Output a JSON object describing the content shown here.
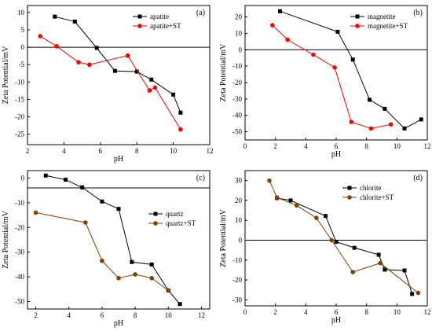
{
  "chart_data": [
    {
      "type": "line",
      "panel_label": "(a)",
      "xlabel": "pH",
      "ylabel": "Zeta Potential/mV",
      "xlim": [
        2,
        12
      ],
      "ylim": [
        -28,
        12
      ],
      "xticks": [
        2,
        4,
        6,
        8,
        10,
        12
      ],
      "yticks": [
        10,
        5,
        0,
        -5,
        -10,
        -15,
        -20,
        -25
      ],
      "reference_line_y": 0,
      "grid": false,
      "legend_position": "top-right",
      "series": [
        {
          "name": "apatite",
          "color": "#000000",
          "marker": "square",
          "x": [
            3.5,
            4.6,
            5.8,
            6.8,
            8.0,
            8.8,
            10.0,
            10.4
          ],
          "y": [
            8.8,
            7.4,
            -0.2,
            -6.8,
            -7.0,
            -9.3,
            -13.6,
            -18.8
          ]
        },
        {
          "name": "apatite+ST",
          "color": "#ff0000",
          "marker": "circle",
          "x": [
            2.7,
            3.6,
            4.8,
            5.4,
            7.5,
            8.7,
            9.0,
            10.4
          ],
          "y": [
            3.2,
            0.3,
            -4.3,
            -5.0,
            -2.4,
            -12.4,
            -11.6,
            -23.6
          ]
        }
      ]
    },
    {
      "type": "line",
      "panel_label": "(b)",
      "xlabel": "pH",
      "ylabel": "Zeta Potential/mV",
      "xlim": [
        0,
        12
      ],
      "ylim": [
        -55,
        27
      ],
      "xticks": [
        0,
        2,
        4,
        6,
        8,
        10,
        12
      ],
      "yticks": [
        20,
        10,
        0,
        -10,
        -20,
        -30,
        -40,
        -50
      ],
      "reference_line_y": 0,
      "grid": false,
      "legend_position": "top-right",
      "series": [
        {
          "name": "magnetite",
          "color": "#000000",
          "marker": "square",
          "x": [
            2.3,
            6.1,
            7.1,
            8.2,
            9.2,
            10.5,
            11.6
          ],
          "y": [
            23.5,
            11.0,
            -6.0,
            -30.5,
            -36.0,
            -48.0,
            -42.5
          ]
        },
        {
          "name": "magnetite+ST",
          "color": "#ff0000",
          "marker": "circle",
          "x": [
            1.8,
            2.8,
            4.5,
            5.9,
            7.0,
            8.3,
            9.6
          ],
          "y": [
            15.0,
            6.2,
            -3.0,
            -10.8,
            -44.0,
            -48.0,
            -45.5
          ]
        }
      ]
    },
    {
      "type": "line",
      "panel_label": "(c)",
      "xlabel": "pH",
      "ylabel": "Zeta Potential/mV",
      "xlim": [
        1.5,
        12.5
      ],
      "ylim": [
        -53,
        3
      ],
      "xticks": [
        2,
        4,
        6,
        8,
        10,
        12
      ],
      "yticks": [
        0,
        -10,
        -20,
        -30,
        -40,
        -50
      ],
      "reference_line_y": -4,
      "grid": false,
      "legend_position": "center-right",
      "series": [
        {
          "name": "quartz",
          "color": "#000000",
          "marker": "square",
          "x": [
            2.6,
            3.8,
            4.8,
            6.0,
            7.0,
            7.8,
            9.0,
            10.0,
            10.7
          ],
          "y": [
            1.0,
            -0.7,
            -3.8,
            -9.5,
            -12.5,
            -34.0,
            -35.0,
            -45.5,
            -51.0
          ]
        },
        {
          "name": "quartz+ST",
          "color": "#804000",
          "marker": "circle",
          "x": [
            2.0,
            5.0,
            6.0,
            7.0,
            8.0,
            9.0,
            10.0
          ],
          "y": [
            -14.0,
            -18.0,
            -33.5,
            -40.5,
            -39.0,
            -40.5,
            -45.5
          ]
        }
      ]
    },
    {
      "type": "line",
      "panel_label": "(d)",
      "xlabel": "pH",
      "ylabel": "Zeta Potential/mV",
      "xlim": [
        0,
        12
      ],
      "ylim": [
        -33,
        35
      ],
      "xticks": [
        0,
        2,
        4,
        6,
        8,
        10,
        12
      ],
      "yticks": [
        30,
        20,
        10,
        0,
        -10,
        -20,
        -30
      ],
      "reference_line_y": 0,
      "grid": false,
      "legend_position": "top-right",
      "series": [
        {
          "name": "chlorite",
          "color": "#000000",
          "marker": "square",
          "x": [
            2.1,
            3.0,
            5.3,
            6.0,
            7.2,
            8.8,
            9.2,
            10.5,
            11.0
          ],
          "y": [
            21.2,
            20.0,
            12.2,
            -0.8,
            -3.8,
            -7.3,
            -14.8,
            -15.2,
            -27.0
          ]
        },
        {
          "name": "chlorite+ST",
          "color": "#804000",
          "marker": "circle",
          "x": [
            1.6,
            2.1,
            3.4,
            4.7,
            5.7,
            7.1,
            8.9,
            11.4
          ],
          "y": [
            30.0,
            21.5,
            17.5,
            11.2,
            0.0,
            -16.0,
            -11.5,
            -26.5
          ]
        }
      ]
    }
  ]
}
